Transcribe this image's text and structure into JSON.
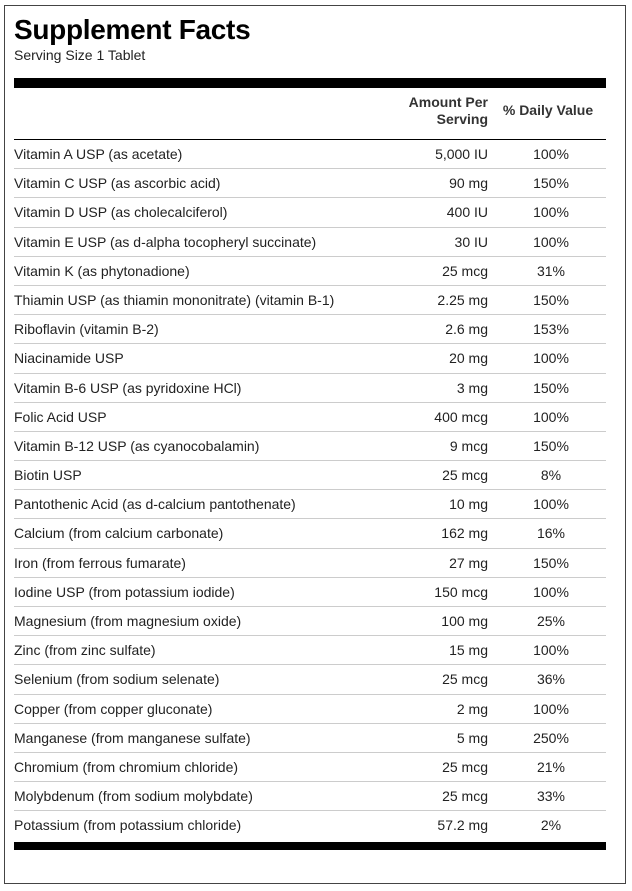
{
  "title": "Supplement Facts",
  "serving_size": "Serving Size 1 Tablet",
  "headers": {
    "amount": "Amount Per Serving",
    "amount_line1": "Amount Per",
    "amount_line2": "Serving",
    "daily_value": "% Daily Value"
  },
  "nutrients": [
    {
      "name": "Vitamin A USP (as acetate)",
      "amount": "5,000 IU",
      "dv": "100%"
    },
    {
      "name": "Vitamin C USP (as ascorbic acid)",
      "amount": "90 mg",
      "dv": "150%"
    },
    {
      "name": "Vitamin D USP (as cholecalciferol)",
      "amount": "400 IU",
      "dv": "100%"
    },
    {
      "name": "Vitamin E USP (as d-alpha tocopheryl succinate)",
      "amount": "30 IU",
      "dv": "100%"
    },
    {
      "name": "Vitamin K (as phytonadione)",
      "amount": "25 mcg",
      "dv": "31%"
    },
    {
      "name": "Thiamin USP (as thiamin mononitrate) (vitamin B-1)",
      "amount": "2.25 mg",
      "dv": "150%"
    },
    {
      "name": "Riboflavin (vitamin B-2)",
      "amount": "2.6 mg",
      "dv": "153%"
    },
    {
      "name": "Niacinamide USP",
      "amount": "20 mg",
      "dv": "100%"
    },
    {
      "name": "Vitamin B-6 USP (as pyridoxine HCl)",
      "amount": "3 mg",
      "dv": "150%"
    },
    {
      "name": "Folic Acid USP",
      "amount": "400 mcg",
      "dv": "100%"
    },
    {
      "name": "Vitamin B-12 USP (as cyanocobalamin)",
      "amount": "9 mcg",
      "dv": "150%"
    },
    {
      "name": "Biotin USP",
      "amount": "25 mcg",
      "dv": "8%"
    },
    {
      "name": "Pantothenic Acid (as d-calcium pantothenate)",
      "amount": "10 mg",
      "dv": "100%"
    },
    {
      "name": "Calcium (from calcium carbonate)",
      "amount": "162 mg",
      "dv": "16%"
    },
    {
      "name": "Iron (from ferrous fumarate)",
      "amount": "27 mg",
      "dv": "150%"
    },
    {
      "name": "Iodine USP (from potassium iodide)",
      "amount": "150 mcg",
      "dv": "100%"
    },
    {
      "name": "Magnesium (from magnesium oxide)",
      "amount": "100 mg",
      "dv": "25%"
    },
    {
      "name": "Zinc (from zinc sulfate)",
      "amount": "15 mg",
      "dv": "100%"
    },
    {
      "name": "Selenium (from sodium selenate)",
      "amount": "25 mcg",
      "dv": "36%"
    },
    {
      "name": "Copper (from copper gluconate)",
      "amount": "2 mg",
      "dv": "100%"
    },
    {
      "name": "Manganese (from manganese sulfate)",
      "amount": "5 mg",
      "dv": "250%"
    },
    {
      "name": "Chromium (from chromium chloride)",
      "amount": "25 mcg",
      "dv": "21%"
    },
    {
      "name": "Molybdenum (from sodium molybdate)",
      "amount": "25 mcg",
      "dv": "33%"
    },
    {
      "name": "Potassium (from potassium chloride)",
      "amount": "57.2 mg",
      "dv": "2%"
    }
  ]
}
